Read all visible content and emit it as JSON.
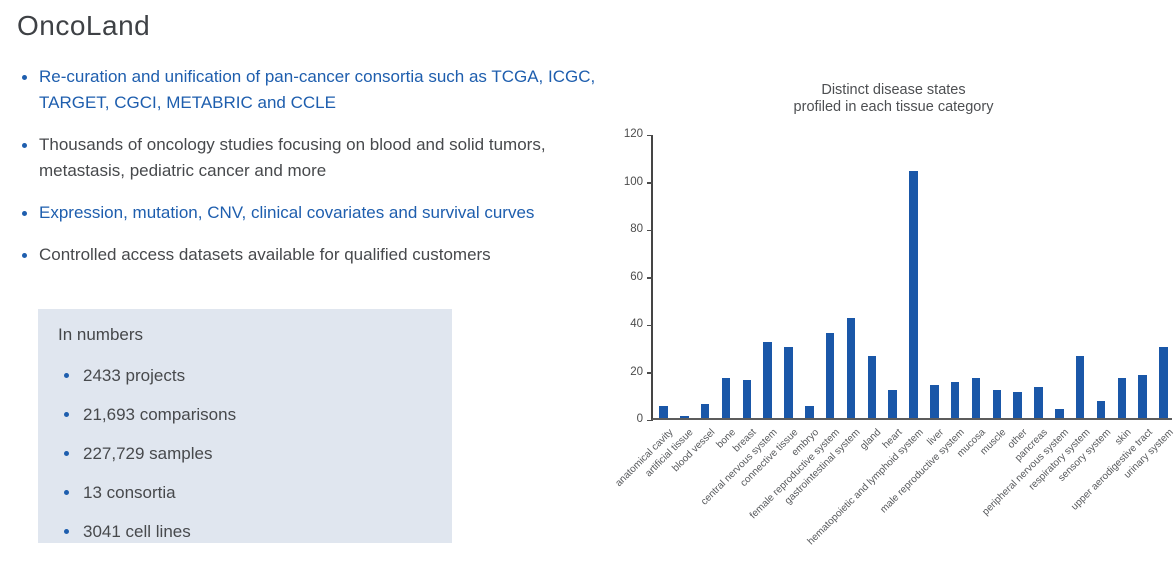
{
  "page": {
    "title": "OncoLand"
  },
  "bullets": [
    {
      "text": "Re-curation and unification of pan-cancer consortia such as TCGA, ICGC, TARGET, CGCI, METABRIC and CCLE",
      "color": "blue"
    },
    {
      "text": "Thousands of oncology studies focusing on blood and solid tumors, metastasis, pediatric cancer and more",
      "color": "gray"
    },
    {
      "text": "Expression, mutation, CNV, clinical covariates and survival curves",
      "color": "blue"
    },
    {
      "text": "Controlled access datasets available for qualified customers",
      "color": "gray"
    }
  ],
  "numbers_box": {
    "title": "In numbers",
    "items": [
      "2433 projects",
      "21,693 comparisons",
      "227,729 samples",
      "13 consortia",
      "3041 cell lines"
    ]
  },
  "colors": {
    "accent_blue": "#1e5eae",
    "bar_blue": "#1a57a8",
    "box_background": "#e0e6ef",
    "heading_gray": "#3e4145",
    "body_gray": "#47494c"
  },
  "chart_data": {
    "type": "bar",
    "title_lines": [
      "Distinct disease states",
      "profiled in each tissue category"
    ],
    "categories": [
      "anatomical cavity",
      "artificial tissue",
      "blood vessel",
      "bone",
      "breast",
      "central nervous system",
      "connective tissue",
      "embryo",
      "female reproductive system",
      "gastrointestinal system",
      "gland",
      "heart",
      "hematopoietic and lymphoid system",
      "liver",
      "male reproductive system",
      "mucosa",
      "muscle",
      "other",
      "pancreas",
      "peripheral nervous system",
      "respiratory system",
      "sensory system",
      "skin",
      "upper aerodigestive tract",
      "urinary system"
    ],
    "values": [
      5,
      1,
      6,
      17,
      16,
      32,
      30,
      5,
      36,
      42,
      26,
      12,
      104,
      14,
      15,
      17,
      12,
      11,
      13,
      4,
      26,
      7,
      17,
      18,
      30
    ],
    "ylabel": "",
    "xlabel": "",
    "ylim": [
      0,
      120
    ],
    "yticks": [
      0,
      20,
      40,
      60,
      80,
      100,
      120
    ],
    "grid": false,
    "legend": "none"
  }
}
